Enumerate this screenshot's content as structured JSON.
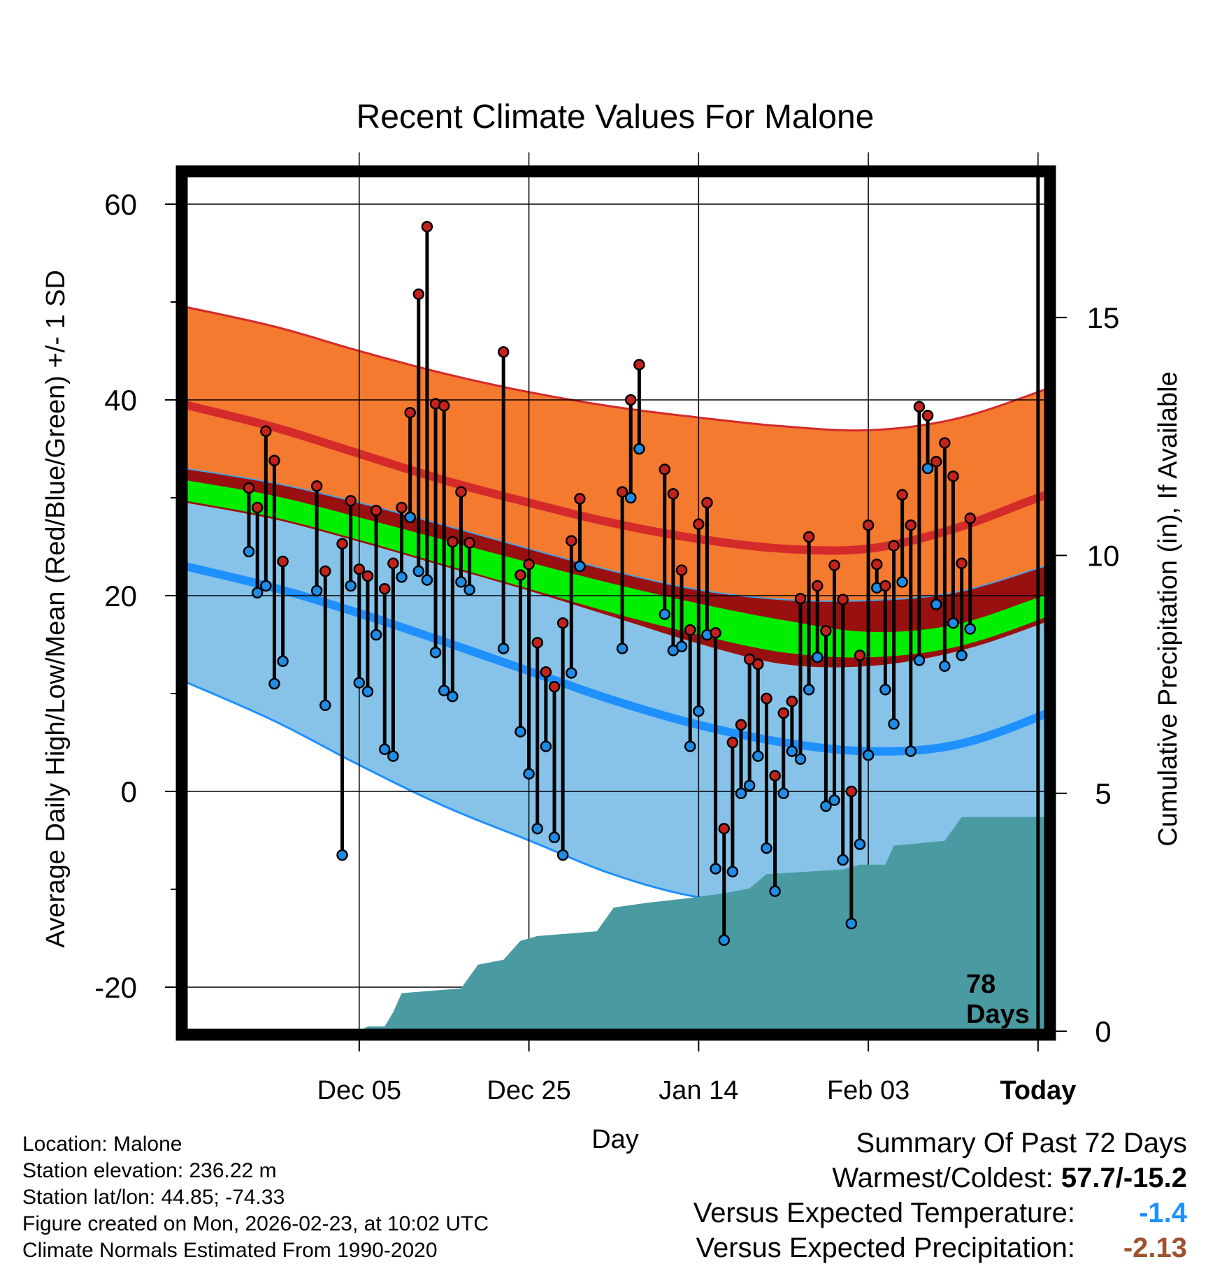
{
  "chart_data": {
    "type": "line",
    "title": "Recent Climate Values For Malone",
    "xlabel": "Day",
    "ylabel": "Average Daily High/Low/Mean (Red/Blue/Green) +/- 1 SD",
    "y2label": "Cumulative Precipitation (in), If Available",
    "ylim": [
      -24.5,
      63
    ],
    "y2lim": [
      0,
      18
    ],
    "xlim": [
      -10.5,
      91
    ],
    "x_ticks": [
      {
        "x": 10,
        "label": "Dec 05"
      },
      {
        "x": 30,
        "label": "Dec 25"
      },
      {
        "x": 50,
        "label": "Jan 14"
      },
      {
        "x": 70,
        "label": "Feb 03"
      },
      {
        "x": 90,
        "label": "Today"
      }
    ],
    "y_ticks": [
      -20,
      0,
      20,
      40,
      60
    ],
    "y2_ticks": [
      0,
      5,
      10,
      15
    ],
    "grid": true,
    "today_x": 90,
    "today_text": [
      "78",
      "Days"
    ],
    "normal_high_upper": [
      [
        -10.5,
        49.5
      ],
      [
        0,
        47.5
      ],
      [
        10,
        45
      ],
      [
        20,
        42.7
      ],
      [
        30,
        40.8
      ],
      [
        40,
        39.3
      ],
      [
        50,
        38.2
      ],
      [
        60,
        37.3
      ],
      [
        70,
        36.9
      ],
      [
        80,
        38
      ],
      [
        90,
        40.8
      ],
      [
        101,
        44.5
      ]
    ],
    "normal_high": [
      [
        -10.5,
        39.5
      ],
      [
        0,
        37.2
      ],
      [
        10,
        34.5
      ],
      [
        20,
        31.8
      ],
      [
        30,
        29.5
      ],
      [
        40,
        27.4
      ],
      [
        50,
        25.8
      ],
      [
        60,
        24.8
      ],
      [
        70,
        24.8
      ],
      [
        80,
        26.8
      ],
      [
        90,
        30
      ],
      [
        101,
        33.5
      ]
    ],
    "normal_high_lower": [
      [
        -10.5,
        33
      ],
      [
        0,
        31.5
      ],
      [
        10,
        29.5
      ],
      [
        20,
        27.2
      ],
      [
        30,
        24.8
      ],
      [
        40,
        22.5
      ],
      [
        50,
        20.6
      ],
      [
        60,
        19.6
      ],
      [
        70,
        19.5
      ],
      [
        80,
        20.3
      ],
      [
        90,
        22.8
      ],
      [
        101,
        26
      ]
    ],
    "normal_mean_upper": [
      [
        -10.5,
        31.8
      ],
      [
        0,
        30.2
      ],
      [
        10,
        28
      ],
      [
        20,
        25.7
      ],
      [
        30,
        23.4
      ],
      [
        40,
        21.2
      ],
      [
        50,
        19.2
      ],
      [
        60,
        17.5
      ],
      [
        70,
        16.3
      ],
      [
        80,
        17
      ],
      [
        90,
        19.8
      ],
      [
        101,
        23.3
      ]
    ],
    "normal_mean_lower": [
      [
        -10.5,
        29.7
      ],
      [
        0,
        28
      ],
      [
        10,
        25.7
      ],
      [
        20,
        23.2
      ],
      [
        30,
        20.7
      ],
      [
        40,
        18.2
      ],
      [
        50,
        16
      ],
      [
        60,
        14.2
      ],
      [
        70,
        13.7
      ],
      [
        80,
        14.7
      ],
      [
        90,
        17.5
      ],
      [
        101,
        21.5
      ]
    ],
    "normal_low_upper": [
      [
        -10.5,
        29.5
      ],
      [
        0,
        27.8
      ],
      [
        10,
        25.5
      ],
      [
        20,
        23
      ],
      [
        30,
        20.5
      ],
      [
        40,
        17.8
      ],
      [
        50,
        15.1
      ],
      [
        60,
        13
      ],
      [
        70,
        12.8
      ],
      [
        80,
        14.2
      ],
      [
        90,
        17
      ],
      [
        101,
        21
      ]
    ],
    "normal_low": [
      [
        -10.5,
        23
      ],
      [
        0,
        20.8
      ],
      [
        10,
        18.2
      ],
      [
        20,
        15.3
      ],
      [
        30,
        12.3
      ],
      [
        40,
        9.3
      ],
      [
        50,
        6.8
      ],
      [
        60,
        5
      ],
      [
        70,
        4.1
      ],
      [
        80,
        4.7
      ],
      [
        90,
        7.6
      ],
      [
        101,
        12
      ]
    ],
    "normal_low_lower": [
      [
        -10.5,
        11.2
      ],
      [
        0,
        7.2
      ],
      [
        10,
        2.7
      ],
      [
        20,
        -1.5
      ],
      [
        30,
        -5
      ],
      [
        40,
        -8.5
      ],
      [
        50,
        -10.8
      ],
      [
        60,
        -11.3
      ],
      [
        70,
        -10
      ],
      [
        80,
        -8
      ],
      [
        90,
        -5.2
      ],
      [
        101,
        -1.5
      ]
    ],
    "daily": [
      {
        "day": -3,
        "high": 31.0,
        "low": 24.5
      },
      {
        "day": -2,
        "high": 29.0,
        "low": 20.3
      },
      {
        "day": -1,
        "high": 36.8,
        "low": 21.0
      },
      {
        "day": 0,
        "high": 33.8,
        "low": 11.0
      },
      {
        "day": 1,
        "high": 23.5,
        "low": 13.3
      },
      {
        "day": 5,
        "high": 31.2,
        "low": 20.5
      },
      {
        "day": 6,
        "high": 22.5,
        "low": 8.8
      },
      {
        "day": 8,
        "high": 25.3,
        "low": -6.5
      },
      {
        "day": 9,
        "high": 29.7,
        "low": 21.0
      },
      {
        "day": 10,
        "high": 22.7,
        "low": 11.1
      },
      {
        "day": 11,
        "high": 22.0,
        "low": 10.2
      },
      {
        "day": 12,
        "high": 28.7,
        "low": 16.0
      },
      {
        "day": 13,
        "high": 20.7,
        "low": 4.3
      },
      {
        "day": 14,
        "high": 23.3,
        "low": 3.6
      },
      {
        "day": 15,
        "high": 29.0,
        "low": 21.9
      },
      {
        "day": 16,
        "high": 38.7,
        "low": 28.0
      },
      {
        "day": 17,
        "high": 50.8,
        "low": 22.5
      },
      {
        "day": 18,
        "high": 57.7,
        "low": 21.6
      },
      {
        "day": 19,
        "high": 39.6,
        "low": 14.2
      },
      {
        "day": 20,
        "high": 39.4,
        "low": 10.3
      },
      {
        "day": 21,
        "high": 25.5,
        "low": 9.7
      },
      {
        "day": 22,
        "high": 30.6,
        "low": 21.4
      },
      {
        "day": 23,
        "high": 25.4,
        "low": 20.6
      },
      {
        "day": 27,
        "high": 44.9,
        "low": 14.6
      },
      {
        "day": 29,
        "high": 22.1,
        "low": 6.1
      },
      {
        "day": 30,
        "high": 23.2,
        "low": 1.8
      },
      {
        "day": 31,
        "high": 15.2,
        "low": -3.8
      },
      {
        "day": 32,
        "high": 12.2,
        "low": 4.6
      },
      {
        "day": 33,
        "high": 10.7,
        "low": -4.7
      },
      {
        "day": 34,
        "high": 17.2,
        "low": -6.5
      },
      {
        "day": 35,
        "high": 25.6,
        "low": 12.1
      },
      {
        "day": 36,
        "high": 29.9,
        "low": 23.0
      },
      {
        "day": 41,
        "high": 30.6,
        "low": 14.6
      },
      {
        "day": 42,
        "high": 40.0,
        "low": 30.0
      },
      {
        "day": 43,
        "high": 43.6,
        "low": 35.0
      },
      {
        "day": 46,
        "high": 32.9,
        "low": 18.1
      },
      {
        "day": 47,
        "high": 30.4,
        "low": 14.4
      },
      {
        "day": 48,
        "high": 22.6,
        "low": 14.8
      },
      {
        "day": 49,
        "high": 16.5,
        "low": 4.6
      },
      {
        "day": 50,
        "high": 27.3,
        "low": 8.2
      },
      {
        "day": 51,
        "high": 29.5,
        "low": 16.0
      },
      {
        "day": 52,
        "high": 16.2,
        "low": -7.9
      },
      {
        "day": 53,
        "high": -3.8,
        "low": -15.2
      },
      {
        "day": 54,
        "high": 5.0,
        "low": -8.2
      },
      {
        "day": 55,
        "high": 6.8,
        "low": -0.2
      },
      {
        "day": 56,
        "high": 13.5,
        "low": 0.6
      },
      {
        "day": 57,
        "high": 13.0,
        "low": 3.6
      },
      {
        "day": 58,
        "high": 9.5,
        "low": -5.8
      },
      {
        "day": 59,
        "high": 1.6,
        "low": -10.2
      },
      {
        "day": 60,
        "high": 8.0,
        "low": -0.2
      },
      {
        "day": 61,
        "high": 9.2,
        "low": 4.1
      },
      {
        "day": 62,
        "high": 19.7,
        "low": 3.3
      },
      {
        "day": 63,
        "high": 26.0,
        "low": 10.4
      },
      {
        "day": 64,
        "high": 21.0,
        "low": 13.7
      },
      {
        "day": 65,
        "high": 16.4,
        "low": -1.5
      },
      {
        "day": 66,
        "high": 23.1,
        "low": -0.9
      },
      {
        "day": 67,
        "high": 19.6,
        "low": -7.0
      },
      {
        "day": 68,
        "high": 0.0,
        "low": -13.5
      },
      {
        "day": 69,
        "high": 13.9,
        "low": -5.4
      },
      {
        "day": 70,
        "high": 27.2,
        "low": 3.7
      },
      {
        "day": 71,
        "high": 23.2,
        "low": 20.8
      },
      {
        "day": 72,
        "high": 21.0,
        "low": 10.4
      },
      {
        "day": 73,
        "high": 25.1,
        "low": 6.9
      },
      {
        "day": 74,
        "high": 30.3,
        "low": 21.4
      },
      {
        "day": 75,
        "high": 27.2,
        "low": 4.1
      },
      {
        "day": 76,
        "high": 39.3,
        "low": 13.4
      },
      {
        "day": 77,
        "high": 38.4,
        "low": 33.0
      },
      {
        "day": 78,
        "high": 33.7,
        "low": 19.1
      },
      {
        "day": 79,
        "high": 35.6,
        "low": 12.8
      },
      {
        "day": 80,
        "high": 32.2,
        "low": 17.2
      },
      {
        "day": 81,
        "high": 23.3,
        "low": 13.9
      },
      {
        "day": 82,
        "high": 27.9,
        "low": 16.6
      }
    ],
    "cumulative_precipitation": [
      [
        -10.5,
        0
      ],
      [
        10,
        0
      ],
      [
        11,
        0.1
      ],
      [
        13,
        0.1
      ],
      [
        14,
        0.4
      ],
      [
        15,
        0.8
      ],
      [
        22,
        0.9
      ],
      [
        24,
        1.4
      ],
      [
        27,
        1.5
      ],
      [
        29,
        1.9
      ],
      [
        31,
        2.0
      ],
      [
        38,
        2.1
      ],
      [
        40,
        2.6
      ],
      [
        44,
        2.7
      ],
      [
        49,
        2.8
      ],
      [
        53,
        2.9
      ],
      [
        56,
        3.0
      ],
      [
        58,
        3.3
      ],
      [
        67,
        3.4
      ],
      [
        69,
        3.5
      ],
      [
        72,
        3.5
      ],
      [
        73,
        3.9
      ],
      [
        79,
        4.0
      ],
      [
        81,
        4.5
      ],
      [
        90,
        4.5
      ]
    ]
  },
  "info": {
    "location": "Location: Malone",
    "elevation": "Station elevation: 236.22 m",
    "latlon": "Station lat/lon: 44.85; -74.33",
    "created": "Figure created on Mon, 2026-02-23, at 10:02 UTC",
    "normals": "Climate Normals Estimated From 1990-2020"
  },
  "summary": {
    "title": "Summary Of Past 72 Days",
    "warmest_coldest_label": "Warmest/Coldest:",
    "warmest_coldest_value": "57.7/-15.2",
    "temp_label": "Versus Expected Temperature:",
    "temp_value": "-1.4",
    "temp_color": "#1e90ff",
    "precip_label": "Versus Expected Precipitation:",
    "precip_value": "-2.13",
    "precip_color": "#a0522d"
  },
  "colors": {
    "high_band": "#f47a30",
    "high_line": "#d42a2a",
    "mean_band": "#00ee00",
    "low_band": "#87c3e8",
    "low_line": "#1e90ff",
    "overlap": "#991010",
    "precip": "#4a9aa2",
    "high_dot": "#c4221c",
    "low_dot": "#1f8ce6"
  }
}
